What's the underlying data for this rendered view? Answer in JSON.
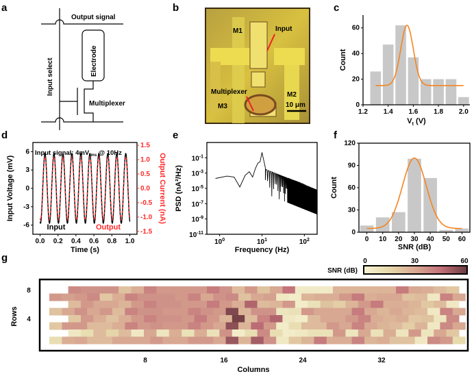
{
  "panels": {
    "a": {
      "letter": "a",
      "output_signal": "Output signal",
      "input_select": "Input select",
      "electrode": "Electrode",
      "multiplexer": "Multiplexer"
    },
    "b": {
      "letter": "b",
      "m1": "M1",
      "m2": "M2",
      "m3": "M3",
      "input": "Input",
      "multiplexer": "Multiplexer",
      "scale": "10 μm"
    },
    "c": {
      "letter": "c"
    },
    "d": {
      "letter": "d"
    },
    "e": {
      "letter": "e"
    },
    "f": {
      "letter": "f"
    },
    "g": {
      "letter": "g"
    }
  },
  "colors": {
    "bar": "#c8c8c8",
    "fit": "#f5841f",
    "output": "#ff2a2a",
    "input": "#000000"
  },
  "chart_data": [
    {
      "id": "c",
      "type": "bar",
      "xlabel": "Vt (V)",
      "xlabel_main": "V",
      "xlabel_sub": "t",
      "xlabel_unit": " (V)",
      "ylabel": "Count",
      "categories": [
        1.3,
        1.4,
        1.5,
        1.6,
        1.7,
        1.8,
        1.9,
        2.0
      ],
      "values": [
        26,
        47,
        62,
        37,
        20,
        20,
        20,
        6
      ],
      "fit": {
        "type": "gaussian",
        "mean": 1.55,
        "sigma": 0.05,
        "peak": 62,
        "baseline": 15,
        "x_range": [
          1.3,
          2.0
        ]
      },
      "xlim": [
        1.2,
        2.05
      ],
      "ylim": [
        0,
        70
      ],
      "xticks": [
        "1.2",
        "1.4",
        "1.6",
        "1.8",
        "2.0"
      ],
      "yticks": [
        "0",
        "20",
        "40",
        "60"
      ]
    },
    {
      "id": "d",
      "type": "line",
      "xlabel": "Time (s)",
      "ylabel": "Input Voltage (mV)",
      "y2label": "Output Current (nA)",
      "annotation": "Input signal: 4mV",
      "annotation_sub": "rms",
      "annotation_tail": " @ 10Hz",
      "legend": [
        "Input",
        "Output"
      ],
      "frequency_hz": 10,
      "amplitude_mV": 5.7,
      "amplitude_nA": 1.1,
      "xlim": [
        -0.08,
        1.08
      ],
      "ylim": [
        -7.5,
        7.5
      ],
      "y2lim": [
        -1.6,
        1.6
      ],
      "xticks": [
        "0.0",
        "0.2",
        "0.4",
        "0.6",
        "0.8",
        "1.0"
      ],
      "yticks": [
        "-6",
        "-3",
        "0",
        "3",
        "6"
      ],
      "y2ticks": [
        "-1.5",
        "-1.0",
        "-0.5",
        "0.0",
        "0.5",
        "1.0",
        "1.5"
      ]
    },
    {
      "id": "e",
      "type": "line",
      "xlabel": "Frequency (Hz)",
      "ylabel": "PSD (nA²/Hz)",
      "scale": "log-log",
      "xlim": [
        0.5,
        200
      ],
      "ylim_exp": [
        -11,
        1
      ],
      "peak": {
        "x": 10,
        "y": 0.5
      },
      "points": [
        [
          0.8,
          0.0002
        ],
        [
          1.5,
          0.0004
        ],
        [
          2.2,
          0.0003
        ],
        [
          3,
          1.5e-05
        ],
        [
          4,
          0.0005
        ],
        [
          5,
          0.0015
        ],
        [
          6,
          0.0003
        ],
        [
          7,
          0.004
        ],
        [
          8,
          0.02
        ],
        [
          9,
          0.03
        ],
        [
          10,
          0.5
        ],
        [
          12,
          0.005
        ],
        [
          20,
          0.0005
        ],
        [
          50,
          5e-05
        ],
        [
          100,
          2e-05
        ],
        [
          200,
          1e-05
        ]
      ],
      "xticks": [
        {
          "base": "10",
          "exp": "0"
        },
        {
          "base": "10",
          "exp": "1"
        },
        {
          "base": "10",
          "exp": "2"
        }
      ],
      "yticks": [
        {
          "base": "10",
          "exp": "-1"
        },
        {
          "base": "10",
          "exp": "-3"
        },
        {
          "base": "10",
          "exp": "-5"
        },
        {
          "base": "10",
          "exp": "-7"
        },
        {
          "base": "10",
          "exp": "-9"
        },
        {
          "base": "10",
          "exp": "-11"
        }
      ]
    },
    {
      "id": "f",
      "type": "bar",
      "xlabel": "SNR (dB)",
      "ylabel": "Count",
      "categories": [
        0,
        10,
        20,
        30,
        40,
        50,
        60
      ],
      "values": [
        9,
        20,
        27,
        99,
        73,
        3,
        5
      ],
      "fit": {
        "type": "gaussian",
        "mean": 30,
        "sigma": 7.5,
        "peak": 100,
        "baseline": 5,
        "x_range": [
          0,
          60
        ]
      },
      "xlim": [
        -5,
        65
      ],
      "ylim": [
        0,
        120
      ],
      "xticks": [
        "0",
        "10",
        "20",
        "30",
        "40",
        "50",
        "60"
      ],
      "yticks": [
        "0",
        "30",
        "60",
        "90",
        "120"
      ]
    },
    {
      "id": "g",
      "type": "heatmap",
      "xlabel": "Columns",
      "ylabel": "Rows",
      "colorbar_label": "SNR (dB)",
      "colorbar_ticks": [
        "0",
        "30",
        "60"
      ],
      "clim": [
        0,
        60
      ],
      "xticks": [
        "8",
        "16",
        "24",
        "32"
      ],
      "yticks": [
        "8",
        "4"
      ],
      "rows_top_to_bottom": [
        [
          null,
          38,
          36,
          36,
          36,
          22,
          28,
          40,
          34,
          34,
          34,
          34,
          42,
          36,
          24,
          34,
          22,
          30,
          44,
          5,
          5,
          5,
          26,
          26,
          26,
          26,
          26,
          42,
          30,
          28,
          24,
          20,
          8,
          42,
          38
        ],
        [
          34,
          32,
          34,
          38,
          20,
          28,
          40,
          36,
          36,
          36,
          34,
          40,
          30,
          36,
          38,
          22,
          30,
          32,
          6,
          4,
          26,
          28,
          28,
          34,
          42,
          28,
          30,
          30,
          22,
          24,
          6,
          40,
          30,
          8
        ],
        [
          null,
          24,
          34,
          30,
          30,
          26,
          34,
          40,
          36,
          36,
          34,
          34,
          42,
          34,
          28,
          48,
          24,
          26,
          34,
          4,
          10,
          22,
          18,
          26,
          34,
          42,
          28,
          28,
          26,
          20,
          24,
          6,
          38,
          32,
          10
        ],
        [
          22,
          30,
          36,
          30,
          34,
          24,
          40,
          36,
          36,
          34,
          34,
          40,
          36,
          34,
          56,
          26,
          36,
          36,
          8,
          10,
          34,
          30,
          30,
          30,
          42,
          30,
          26,
          30,
          26,
          24,
          6,
          40,
          30,
          8
        ],
        [
          null,
          20,
          34,
          28,
          22,
          28,
          34,
          40,
          36,
          36,
          34,
          42,
          34,
          26,
          58,
          24,
          40,
          48,
          6,
          4,
          24,
          30,
          30,
          34,
          40,
          28,
          26,
          28,
          20,
          22,
          8,
          38,
          30,
          10
        ],
        [
          20,
          34,
          34,
          24,
          24,
          28,
          40,
          34,
          36,
          34,
          34,
          40,
          34,
          30,
          54,
          26,
          46,
          34,
          4,
          12,
          24,
          24,
          34,
          30,
          40,
          30,
          26,
          24,
          18,
          26,
          6,
          38,
          30,
          8
        ],
        [
          null,
          6,
          12,
          24,
          16,
          24,
          6,
          30,
          8,
          28,
          10,
          28,
          10,
          36,
          4,
          12,
          38,
          12,
          4,
          6,
          10,
          10,
          34,
          8,
          30,
          10,
          28,
          8,
          34,
          8,
          30,
          20,
          16,
          10
        ],
        [
          12,
          28,
          30,
          24,
          24,
          30,
          30,
          30,
          34,
          30,
          30,
          34,
          34,
          30,
          52,
          26,
          50,
          36,
          6,
          20,
          26,
          42,
          28,
          28,
          40,
          26,
          28,
          22,
          22,
          6,
          38,
          34,
          14
        ]
      ]
    }
  ]
}
